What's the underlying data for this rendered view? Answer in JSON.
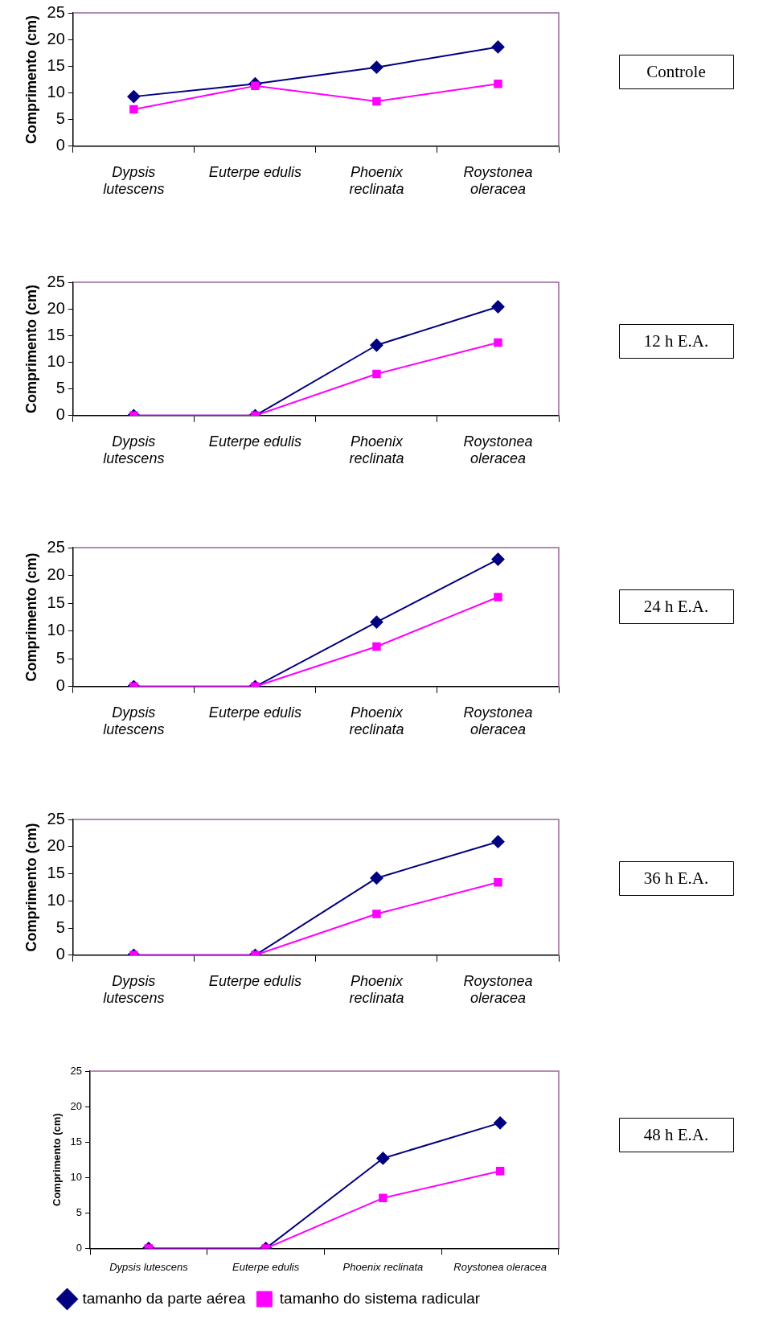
{
  "chart_data": [
    {
      "type": "line",
      "annotations": [
        "Controle"
      ],
      "ylabel": "Comprimento (cm)",
      "categories": [
        "Dypsis lutescens",
        "Euterpe edulis",
        "Phoenix reclinata",
        "Roystonea oleracea"
      ],
      "ylim": [
        0,
        25
      ],
      "yticks": [
        0,
        5,
        10,
        15,
        20,
        25
      ],
      "grid": false,
      "legend": false,
      "series": [
        {
          "color": "#000080",
          "marker": "diamond",
          "values": [
            9.3,
            11.7,
            14.8,
            18.6
          ]
        },
        {
          "color": "#ff00ff",
          "marker": "square",
          "values": [
            6.9,
            11.3,
            8.4,
            11.7
          ]
        }
      ]
    },
    {
      "type": "line",
      "annotations": [
        "12 h E.A."
      ],
      "ylabel": "Comprimento (cm)",
      "categories": [
        "Dypsis lutescens",
        "Euterpe edulis",
        "Phoenix reclinata",
        "Roystonea oleracea"
      ],
      "ylim": [
        0,
        25
      ],
      "yticks": [
        0,
        5,
        10,
        15,
        20,
        25
      ],
      "grid": false,
      "legend": false,
      "series": [
        {
          "color": "#000080",
          "marker": "diamond",
          "values": [
            0,
            0,
            13.2,
            20.4
          ]
        },
        {
          "color": "#ff00ff",
          "marker": "square",
          "values": [
            0,
            0,
            7.8,
            13.7
          ]
        }
      ]
    },
    {
      "type": "line",
      "annotations": [
        "24 h E.A."
      ],
      "ylabel": "Comprimento (cm)",
      "categories": [
        "Dypsis lutescens",
        "Euterpe edulis",
        "Phoenix reclinata",
        "Roystonea oleracea"
      ],
      "ylim": [
        0,
        25
      ],
      "yticks": [
        0,
        5,
        10,
        15,
        20,
        25
      ],
      "grid": false,
      "legend": false,
      "series": [
        {
          "color": "#000080",
          "marker": "diamond",
          "values": [
            0,
            0,
            11.6,
            22.9
          ]
        },
        {
          "color": "#ff00ff",
          "marker": "square",
          "values": [
            0,
            0,
            7.2,
            16.1
          ]
        }
      ]
    },
    {
      "type": "line",
      "annotations": [
        "36 h E.A."
      ],
      "ylabel": "Comprimento (cm)",
      "categories": [
        "Dypsis lutescens",
        "Euterpe edulis",
        "Phoenix reclinata",
        "Roystonea oleracea"
      ],
      "ylim": [
        0,
        25
      ],
      "yticks": [
        0,
        5,
        10,
        15,
        20,
        25
      ],
      "grid": false,
      "legend": false,
      "series": [
        {
          "color": "#000080",
          "marker": "diamond",
          "values": [
            0,
            0,
            14.2,
            20.9
          ]
        },
        {
          "color": "#ff00ff",
          "marker": "square",
          "values": [
            0,
            0,
            7.6,
            13.4
          ]
        }
      ]
    },
    {
      "type": "line",
      "annotations": [
        "48 h E.A."
      ],
      "ylabel": "Comprimento (cm)",
      "categories": [
        "Dypsis lutescens",
        "Euterpe edulis",
        "Phoenix reclinata",
        "Roystonea oleracea"
      ],
      "ylim": [
        0,
        25
      ],
      "yticks": [
        0,
        5,
        10,
        15,
        20,
        25
      ],
      "grid": false,
      "legend": "bottom left",
      "series": [
        {
          "name": "tamanho da parte aérea",
          "color": "#000080",
          "marker": "diamond",
          "values": [
            0,
            0,
            12.7,
            17.7
          ]
        },
        {
          "name": "tamanho do sistema radicular",
          "color": "#ff00ff",
          "marker": "square",
          "values": [
            0,
            0,
            7.1,
            10.9
          ]
        }
      ]
    }
  ]
}
